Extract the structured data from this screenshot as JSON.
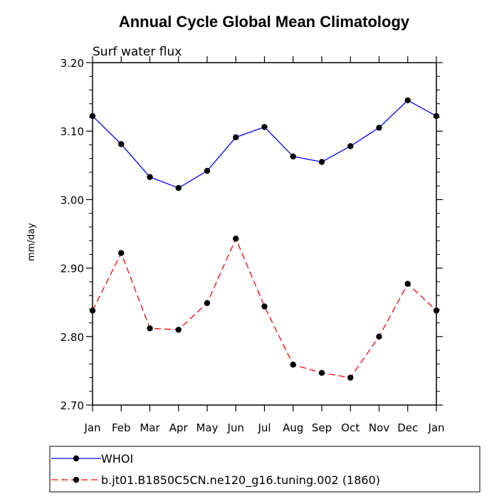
{
  "chart_data": {
    "type": "line",
    "title": "Annual Cycle Global Mean Climatology",
    "subtitle": "Surf water flux",
    "ylabel": "mm/day",
    "xlabel": "",
    "categories": [
      "Jan",
      "Feb",
      "Mar",
      "Apr",
      "May",
      "Jun",
      "Jul",
      "Aug",
      "Sep",
      "Oct",
      "Nov",
      "Dec",
      "Jan"
    ],
    "ylim": [
      2.7,
      3.2
    ],
    "yticks": [
      "2.70",
      "2.80",
      "2.90",
      "3.00",
      "3.10",
      "3.20"
    ],
    "grid": false,
    "legend_position": "bottom",
    "series": [
      {
        "name": "WHOI",
        "color": "#0000ff",
        "dash": "solid",
        "marker": "filled-circle",
        "values": [
          3.122,
          3.081,
          3.033,
          3.017,
          3.042,
          3.091,
          3.106,
          3.063,
          3.055,
          3.078,
          3.105,
          3.145,
          3.122
        ]
      },
      {
        "name": "b.jt01.B1850C5CN.ne120_g16.tuning.002 (1860)",
        "color": "#ff0000",
        "dash": "dashed",
        "marker": "filled-circle",
        "values": [
          2.838,
          2.922,
          2.812,
          2.81,
          2.849,
          2.943,
          2.844,
          2.759,
          2.747,
          2.74,
          2.8,
          2.877,
          2.838
        ]
      }
    ]
  }
}
